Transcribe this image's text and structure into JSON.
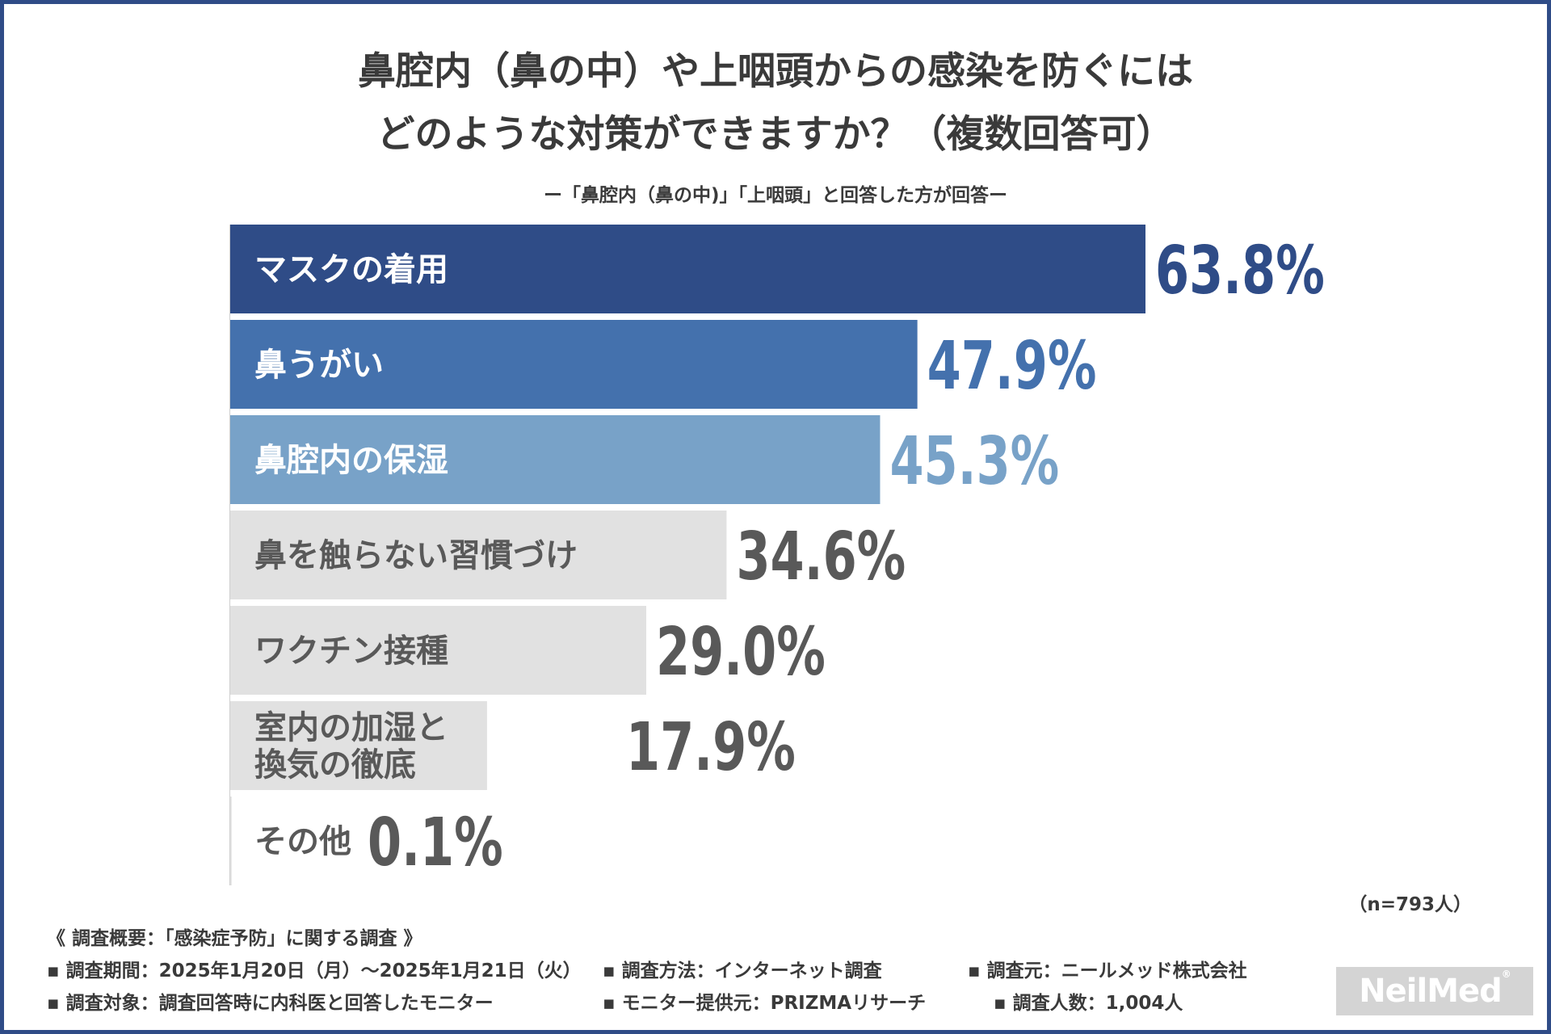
{
  "chart_data": {
    "type": "bar",
    "orientation": "horizontal",
    "title_lines": [
      "鼻腔内（鼻の中）や上咽頭からの感染を防ぐには",
      "どのような対策ができますか？（複数回答可）"
    ],
    "subtitle": "ー「鼻腔内（鼻の中)」「上咽頭」と回答した方が回答ー",
    "categories": [
      [
        "マスクの着用"
      ],
      [
        "鼻うがい"
      ],
      [
        "鼻腔内の保湿"
      ],
      [
        "鼻を触らない習慣づけ"
      ],
      [
        "ワクチン接種"
      ],
      [
        "室内の加湿と",
        "換気の徹底"
      ],
      [
        "その他"
      ]
    ],
    "values": [
      63.8,
      47.9,
      45.3,
      34.6,
      29.0,
      17.9,
      0.1
    ],
    "value_labels": [
      "63.8%",
      "47.9%",
      "45.3%",
      "34.6%",
      "29.0%",
      "17.9%",
      "0.1%"
    ],
    "xlim": [
      0,
      63.8
    ],
    "bar_colors": [
      "#2f4c87",
      "#4471ad",
      "#78a2c8",
      "#e1e1e1",
      "#e1e1e1",
      "#e1e1e1",
      "#e1e1e1"
    ],
    "label_colors": [
      "#ffffff",
      "#ffffff",
      "#ffffff",
      "#595959",
      "#595959",
      "#595959",
      "#595959"
    ],
    "value_colors": [
      "#2f4c87",
      "#4471ad",
      "#78a2c8",
      "#595959",
      "#595959",
      "#595959",
      "#595959"
    ],
    "note": "（n=793人）"
  },
  "footer": {
    "heading": "《 調査概要：「感染症予防」に関する調査 》",
    "items": [
      "▪ 調査期間：2025年1月20日（月）～2025年1月21日（火）",
      "▪ 調査方法：インターネット調査",
      "▪ 調査元：ニールメッド株式会社",
      "▪ 調査対象：調査回答時に内科医と回答したモニター",
      "▪ モニター提供元：PRIZMAリサーチ",
      "▪ 調査人数：1,004人"
    ]
  },
  "logo": {
    "text": "NeilMed",
    "mark": "®"
  }
}
